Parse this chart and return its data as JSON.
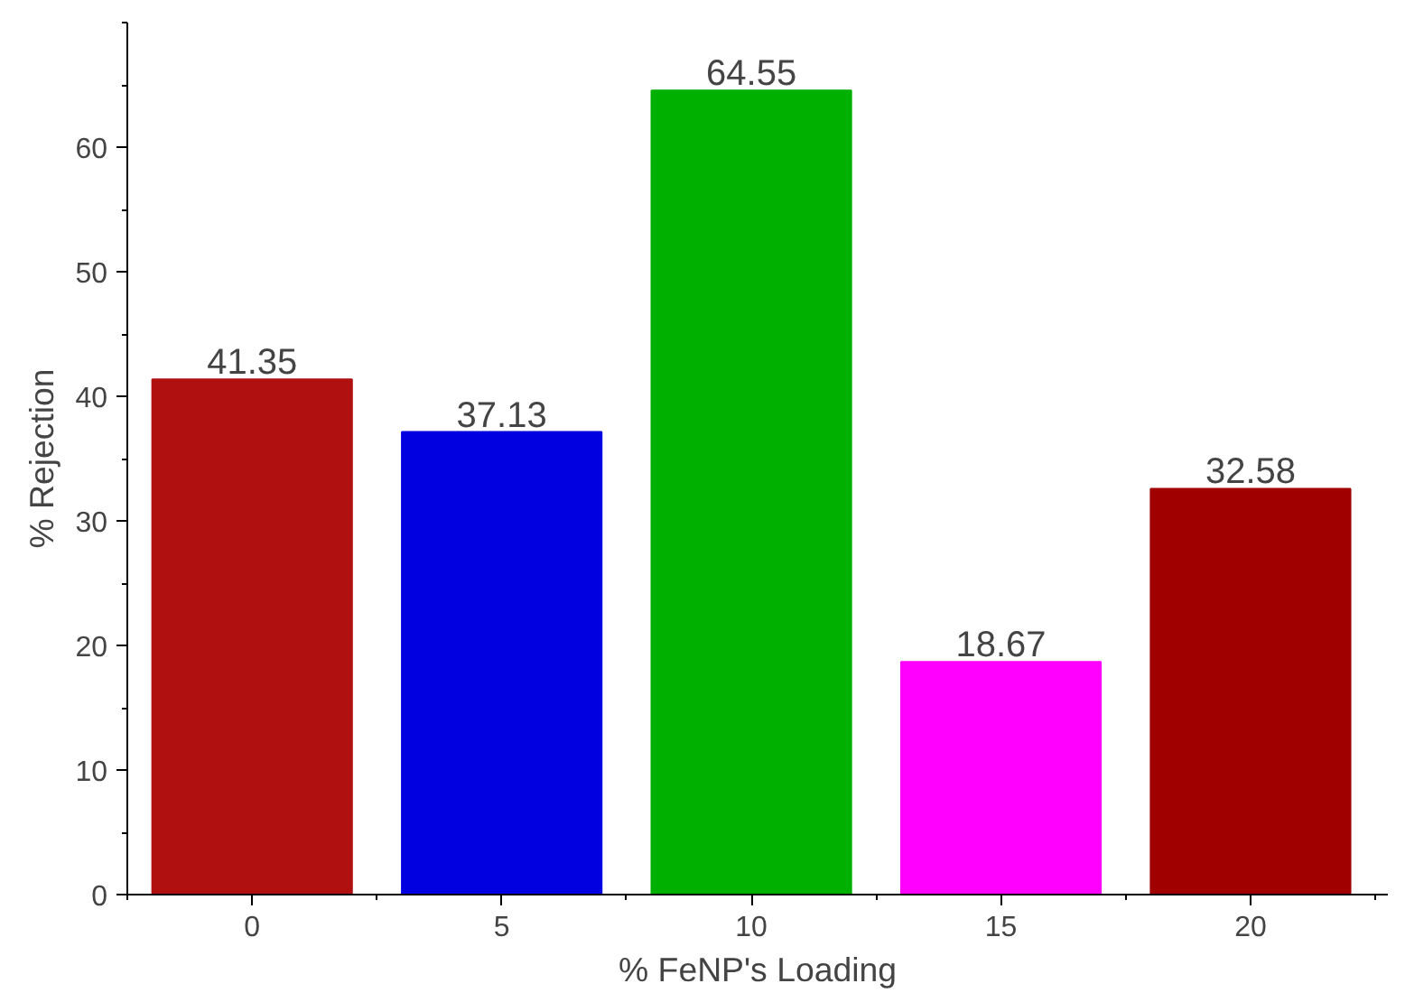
{
  "chart_data": {
    "type": "bar",
    "xlabel": "% FeNP's Loading",
    "ylabel": "% Rejection",
    "categories": [
      "0",
      "5",
      "10",
      "15",
      "20"
    ],
    "values": [
      41.35,
      37.13,
      64.55,
      18.67,
      32.58
    ],
    "colors": [
      "#b01010",
      "#0000e0",
      "#00b000",
      "#ff00ff",
      "#a00000"
    ],
    "ylim": [
      0,
      70
    ],
    "yticks": [
      0,
      10,
      20,
      30,
      40,
      50,
      60
    ],
    "grid": false,
    "data_labels": true
  }
}
